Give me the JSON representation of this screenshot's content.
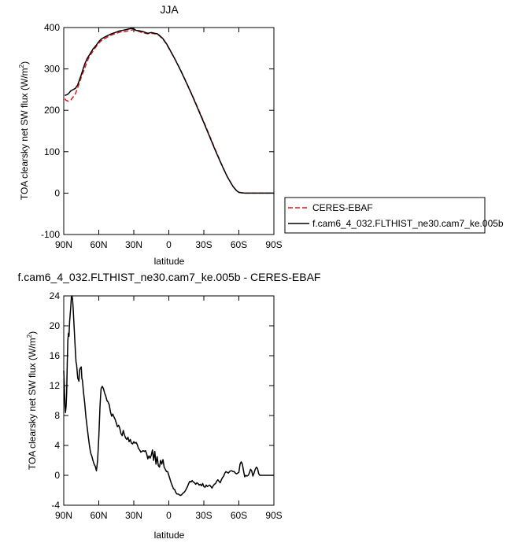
{
  "chart_data": [
    {
      "type": "line",
      "title": "JJA",
      "xlabel": "latitude",
      "ylabel": "TOA clearsky net SW flux (W/m",
      "ylabel_sup": "2",
      "ylabel_close": ")",
      "xlim": [
        90,
        -90
      ],
      "ylim": [
        -100,
        400
      ],
      "x_ticks": [
        90,
        60,
        30,
        0,
        -30,
        -60,
        -90
      ],
      "x_tick_labels": [
        "90N",
        "60N",
        "30N",
        "0",
        "30S",
        "60S",
        "90S"
      ],
      "y_ticks": [
        -100,
        0,
        100,
        200,
        300,
        400
      ],
      "y_tick_labels": [
        "-100",
        "0",
        "100",
        "200",
        "300",
        "400"
      ],
      "grid": false,
      "legend_position": "right",
      "series": [
        {
          "name": "CERES-EBAF",
          "color": "#e3141b",
          "dash": "dashed",
          "x": [
            89,
            88,
            86,
            84,
            82,
            80,
            78,
            75,
            72,
            70,
            68,
            65,
            62,
            60,
            58,
            55,
            52,
            50,
            48,
            45,
            42,
            40,
            38,
            35,
            32,
            30,
            28,
            25,
            22,
            20,
            18,
            15,
            12,
            10,
            8,
            5,
            2,
            0,
            -5,
            -10,
            -15,
            -20,
            -25,
            -30,
            -35,
            -40,
            -45,
            -50,
            -55,
            -58,
            -60,
            -62,
            -65,
            -70,
            -75,
            -80,
            -85,
            -90
          ],
          "y": [
            228,
            224,
            222,
            225,
            232,
            240,
            255,
            280,
            302,
            318,
            330,
            343,
            355,
            362,
            368,
            373,
            378,
            381,
            383,
            386,
            389,
            390,
            390,
            392,
            394,
            395,
            393,
            390,
            387,
            386,
            385,
            386,
            385,
            384,
            380,
            372,
            360,
            350,
            325,
            298,
            268,
            237,
            205,
            172,
            138,
            104,
            71,
            40,
            16,
            6,
            2,
            1,
            0,
            0,
            0,
            0,
            0,
            0
          ]
        },
        {
          "name": "f.cam6_4_032.FLTHIST_ne30.cam7_ke.005b",
          "color": "#000000",
          "dash": "solid",
          "x": [
            89,
            88,
            86,
            84,
            82,
            80,
            78,
            75,
            72,
            70,
            68,
            65,
            62,
            60,
            58,
            55,
            52,
            50,
            48,
            45,
            42,
            40,
            38,
            35,
            32,
            30,
            28,
            25,
            22,
            20,
            18,
            15,
            12,
            10,
            8,
            5,
            2,
            0,
            -5,
            -10,
            -15,
            -20,
            -25,
            -30,
            -35,
            -40,
            -45,
            -50,
            -55,
            -58,
            -60,
            -62,
            -65,
            -70,
            -75,
            -80,
            -85,
            -90
          ],
          "y": [
            236,
            237,
            240,
            247,
            250,
            253,
            262,
            286,
            312,
            325,
            334,
            348,
            358,
            366,
            372,
            377,
            381,
            384,
            386,
            389,
            392,
            393,
            394,
            396,
            398,
            397,
            393,
            392,
            390,
            388,
            386,
            388,
            386,
            385,
            381,
            373,
            361,
            351,
            325,
            297,
            267,
            236,
            203,
            170,
            136,
            102,
            70,
            40,
            16,
            6,
            2,
            1,
            0,
            0,
            0,
            0,
            0,
            0
          ]
        }
      ]
    },
    {
      "type": "line",
      "title": "f.cam6_4_032.FLTHIST_ne30.cam7_ke.005b - CERES-EBAF",
      "xlabel": "latitude",
      "ylabel": "TOA clearsky net SW flux (W/m",
      "ylabel_sup": "2",
      "ylabel_close": ")",
      "xlim": [
        90,
        -90
      ],
      "ylim": [
        -4,
        24
      ],
      "x_ticks": [
        90,
        60,
        30,
        0,
        -30,
        -60,
        -90
      ],
      "x_tick_labels": [
        "90N",
        "60N",
        "30N",
        "0",
        "30S",
        "60S",
        "90S"
      ],
      "y_ticks": [
        -4,
        0,
        4,
        8,
        12,
        16,
        20,
        24
      ],
      "y_tick_labels": [
        "-4",
        "0",
        "4",
        "8",
        "12",
        "16",
        "20",
        "24"
      ],
      "grid": false,
      "series": [
        {
          "name": "",
          "color": "#000000",
          "dash": "solid",
          "x": [
            90,
            89.5,
            89,
            88.5,
            88,
            87.5,
            87,
            86.5,
            86,
            85.5,
            85,
            84.5,
            84,
            83.5,
            83,
            82.5,
            82,
            81.5,
            81,
            80.5,
            80,
            79.5,
            79,
            78,
            77,
            76.5,
            76,
            75,
            74.5,
            74,
            73,
            72,
            71,
            70,
            69,
            68,
            67,
            66,
            65,
            64,
            63,
            62,
            61,
            60,
            59,
            58.5,
            58,
            57,
            56,
            55,
            54,
            53,
            52,
            51,
            50,
            49,
            48,
            47,
            46,
            45,
            44,
            43,
            42,
            41,
            40,
            39,
            38,
            37,
            36,
            35,
            34,
            33,
            32,
            31,
            30,
            29,
            28,
            27,
            26,
            25,
            24,
            23,
            22,
            21,
            20,
            19,
            18,
            17,
            16,
            15,
            14,
            13,
            12,
            11,
            10,
            9,
            8,
            7,
            6,
            5,
            4,
            3,
            2,
            1,
            0,
            -1,
            -2,
            -3,
            -4,
            -5,
            -6,
            -7,
            -8,
            -9,
            -10,
            -11,
            -12,
            -13,
            -14,
            -15,
            -16,
            -17,
            -18,
            -19,
            -20,
            -21,
            -22,
            -23,
            -24,
            -25,
            -26,
            -27,
            -28,
            -29,
            -30,
            -31,
            -32,
            -33,
            -34,
            -35,
            -36,
            -37,
            -38,
            -39,
            -40,
            -41,
            -42,
            -43,
            -44,
            -45,
            -46,
            -47,
            -48,
            -49,
            -50,
            -51,
            -52,
            -53,
            -54,
            -55,
            -56,
            -57,
            -58,
            -59,
            -60,
            -61,
            -62,
            -63,
            -64,
            -65,
            -66,
            -67,
            -68,
            -69,
            -70,
            -71,
            -72,
            -73,
            -74,
            -75,
            -76,
            -77,
            -78,
            -79,
            -80,
            -82,
            -85,
            -88,
            -90
          ],
          "y": [
            14,
            12,
            9.5,
            8.4,
            9.2,
            11,
            15,
            18,
            19,
            18.6,
            20.5,
            21.5,
            22.5,
            23.8,
            24,
            23.6,
            22.5,
            21,
            19.5,
            18,
            16.5,
            15.2,
            14.8,
            13,
            12.6,
            14,
            14.3,
            14.5,
            13,
            12.7,
            11,
            9.6,
            7.8,
            6.5,
            5.2,
            4,
            3,
            2.6,
            2,
            1.5,
            1.2,
            0.6,
            2,
            5,
            9,
            10.5,
            11.6,
            11.9,
            11.6,
            11,
            10.6,
            10,
            9.8,
            9.4,
            8.5,
            7.9,
            8.2,
            7.8,
            7.5,
            7,
            6.5,
            6.7,
            6.3,
            5.6,
            5.3,
            6,
            5.4,
            5,
            4.8,
            5.1,
            4.5,
            4.8,
            4.3,
            4.2,
            4.5,
            4.3,
            4.4,
            4.1,
            3.6,
            3.4,
            3.1,
            3.2,
            3.3,
            3.2,
            3.3,
            2.9,
            2.2,
            2.6,
            2.3,
            2.7,
            3.4,
            2,
            3.2,
            1.5,
            2.5,
            1.3,
            1.1,
            2,
            1.5,
            2.1,
            1.1,
            0.8,
            0.5,
            0.5,
            0,
            -0.5,
            -1,
            -1.4,
            -1.8,
            -1.9,
            -2.3,
            -2.5,
            -2.5,
            -2.6,
            -2.7,
            -2.6,
            -2.4,
            -2.3,
            -2.1,
            -1.8,
            -1.5,
            -1.1,
            -0.8,
            -0.9,
            -0.7,
            -0.9,
            -1,
            -1.2,
            -1,
            -1.1,
            -1.3,
            -1.2,
            -1.4,
            -1.1,
            -1.5,
            -1.6,
            -1.3,
            -1.5,
            -1.4,
            -1.3,
            -1.5,
            -1.7,
            -1.4,
            -1.2,
            -1.1,
            -0.8,
            -0.6,
            -0.8,
            -1,
            -0.6,
            -0.3,
            -0.1,
            0.3,
            0.5,
            0.4,
            0.3,
            0.5,
            0.6,
            0.6,
            0.5,
            0.5,
            0.3,
            0.2,
            0.3,
            0.4,
            1.5,
            1.8,
            1.5,
            0.6,
            -0.2,
            0,
            -0.1,
            0,
            0.3,
            0.8,
            0.6,
            -0.1,
            0.3,
            0.8,
            1.1,
            0.9,
            0.2,
            0,
            0,
            0,
            0,
            0,
            0,
            0
          ]
        }
      ]
    }
  ]
}
